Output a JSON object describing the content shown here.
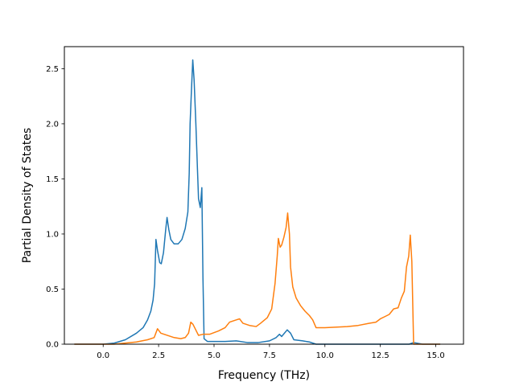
{
  "chart_data": {
    "type": "line",
    "title": "",
    "xlabel": "Frequency (THz)",
    "ylabel": "Partial Density of States",
    "xlim": [
      -1.75,
      16.25
    ],
    "ylim": [
      0.0,
      2.7
    ],
    "x_ticks": [
      "0.0",
      "2.5",
      "5.0",
      "7.5",
      "10.0",
      "12.5",
      "15.0"
    ],
    "y_ticks": [
      "0.0",
      "0.5",
      "1.0",
      "1.5",
      "2.0",
      "2.5"
    ],
    "grid": false,
    "legend": "none",
    "series": [
      {
        "color": "#1f77b4",
        "points": [
          [
            -1.3,
            0.0
          ],
          [
            0.0,
            0.0
          ],
          [
            0.5,
            0.01
          ],
          [
            1.0,
            0.04
          ],
          [
            1.5,
            0.1
          ],
          [
            1.8,
            0.15
          ],
          [
            2.0,
            0.22
          ],
          [
            2.15,
            0.3
          ],
          [
            2.25,
            0.4
          ],
          [
            2.32,
            0.55
          ],
          [
            2.38,
            0.95
          ],
          [
            2.45,
            0.85
          ],
          [
            2.55,
            0.74
          ],
          [
            2.62,
            0.73
          ],
          [
            2.72,
            0.83
          ],
          [
            2.82,
            1.04
          ],
          [
            2.88,
            1.15
          ],
          [
            2.96,
            1.04
          ],
          [
            3.05,
            0.95
          ],
          [
            3.2,
            0.91
          ],
          [
            3.38,
            0.91
          ],
          [
            3.55,
            0.95
          ],
          [
            3.7,
            1.05
          ],
          [
            3.82,
            1.2
          ],
          [
            3.88,
            1.55
          ],
          [
            3.92,
            2.0
          ],
          [
            3.98,
            2.3
          ],
          [
            4.04,
            2.58
          ],
          [
            4.1,
            2.4
          ],
          [
            4.18,
            2.0
          ],
          [
            4.25,
            1.6
          ],
          [
            4.3,
            1.32
          ],
          [
            4.38,
            1.24
          ],
          [
            4.45,
            1.42
          ],
          [
            4.5,
            0.6
          ],
          [
            4.55,
            0.05
          ],
          [
            4.7,
            0.025
          ],
          [
            5.5,
            0.025
          ],
          [
            6.0,
            0.03
          ],
          [
            6.5,
            0.015
          ],
          [
            7.0,
            0.015
          ],
          [
            7.5,
            0.03
          ],
          [
            7.8,
            0.06
          ],
          [
            7.95,
            0.09
          ],
          [
            8.05,
            0.07
          ],
          [
            8.3,
            0.13
          ],
          [
            8.45,
            0.1
          ],
          [
            8.6,
            0.04
          ],
          [
            9.0,
            0.03
          ],
          [
            9.3,
            0.02
          ],
          [
            9.6,
            0.0
          ],
          [
            10.0,
            0.0
          ],
          [
            13.8,
            0.0
          ],
          [
            14.0,
            0.015
          ],
          [
            14.4,
            0.0
          ],
          [
            15.2,
            0.0
          ]
        ]
      },
      {
        "color": "#ff7f0e",
        "points": [
          [
            -1.3,
            0.0
          ],
          [
            0.0,
            0.0
          ],
          [
            0.5,
            0.0
          ],
          [
            1.0,
            0.01
          ],
          [
            1.5,
            0.02
          ],
          [
            2.0,
            0.04
          ],
          [
            2.3,
            0.06
          ],
          [
            2.45,
            0.14
          ],
          [
            2.6,
            0.1
          ],
          [
            2.9,
            0.08
          ],
          [
            3.2,
            0.06
          ],
          [
            3.5,
            0.05
          ],
          [
            3.7,
            0.06
          ],
          [
            3.85,
            0.1
          ],
          [
            3.95,
            0.2
          ],
          [
            4.05,
            0.18
          ],
          [
            4.2,
            0.12
          ],
          [
            4.3,
            0.08
          ],
          [
            4.5,
            0.09
          ],
          [
            4.8,
            0.09
          ],
          [
            5.2,
            0.12
          ],
          [
            5.5,
            0.15
          ],
          [
            5.7,
            0.2
          ],
          [
            6.0,
            0.22
          ],
          [
            6.15,
            0.23
          ],
          [
            6.3,
            0.19
          ],
          [
            6.6,
            0.17
          ],
          [
            6.9,
            0.16
          ],
          [
            7.1,
            0.19
          ],
          [
            7.4,
            0.24
          ],
          [
            7.6,
            0.32
          ],
          [
            7.75,
            0.55
          ],
          [
            7.85,
            0.8
          ],
          [
            7.9,
            0.96
          ],
          [
            7.98,
            0.88
          ],
          [
            8.05,
            0.9
          ],
          [
            8.15,
            0.97
          ],
          [
            8.25,
            1.06
          ],
          [
            8.32,
            1.19
          ],
          [
            8.4,
            1.0
          ],
          [
            8.45,
            0.7
          ],
          [
            8.55,
            0.52
          ],
          [
            8.7,
            0.42
          ],
          [
            8.9,
            0.35
          ],
          [
            9.1,
            0.3
          ],
          [
            9.3,
            0.26
          ],
          [
            9.45,
            0.22
          ],
          [
            9.6,
            0.15
          ],
          [
            10.0,
            0.15
          ],
          [
            11.0,
            0.16
          ],
          [
            11.5,
            0.17
          ],
          [
            12.0,
            0.19
          ],
          [
            12.3,
            0.2
          ],
          [
            12.5,
            0.23
          ],
          [
            12.7,
            0.25
          ],
          [
            12.9,
            0.27
          ],
          [
            13.1,
            0.32
          ],
          [
            13.3,
            0.33
          ],
          [
            13.45,
            0.42
          ],
          [
            13.58,
            0.48
          ],
          [
            13.68,
            0.7
          ],
          [
            13.78,
            0.8
          ],
          [
            13.85,
            0.99
          ],
          [
            13.92,
            0.75
          ],
          [
            14.0,
            0.0
          ],
          [
            14.5,
            0.0
          ],
          [
            15.2,
            0.0
          ]
        ]
      }
    ]
  }
}
